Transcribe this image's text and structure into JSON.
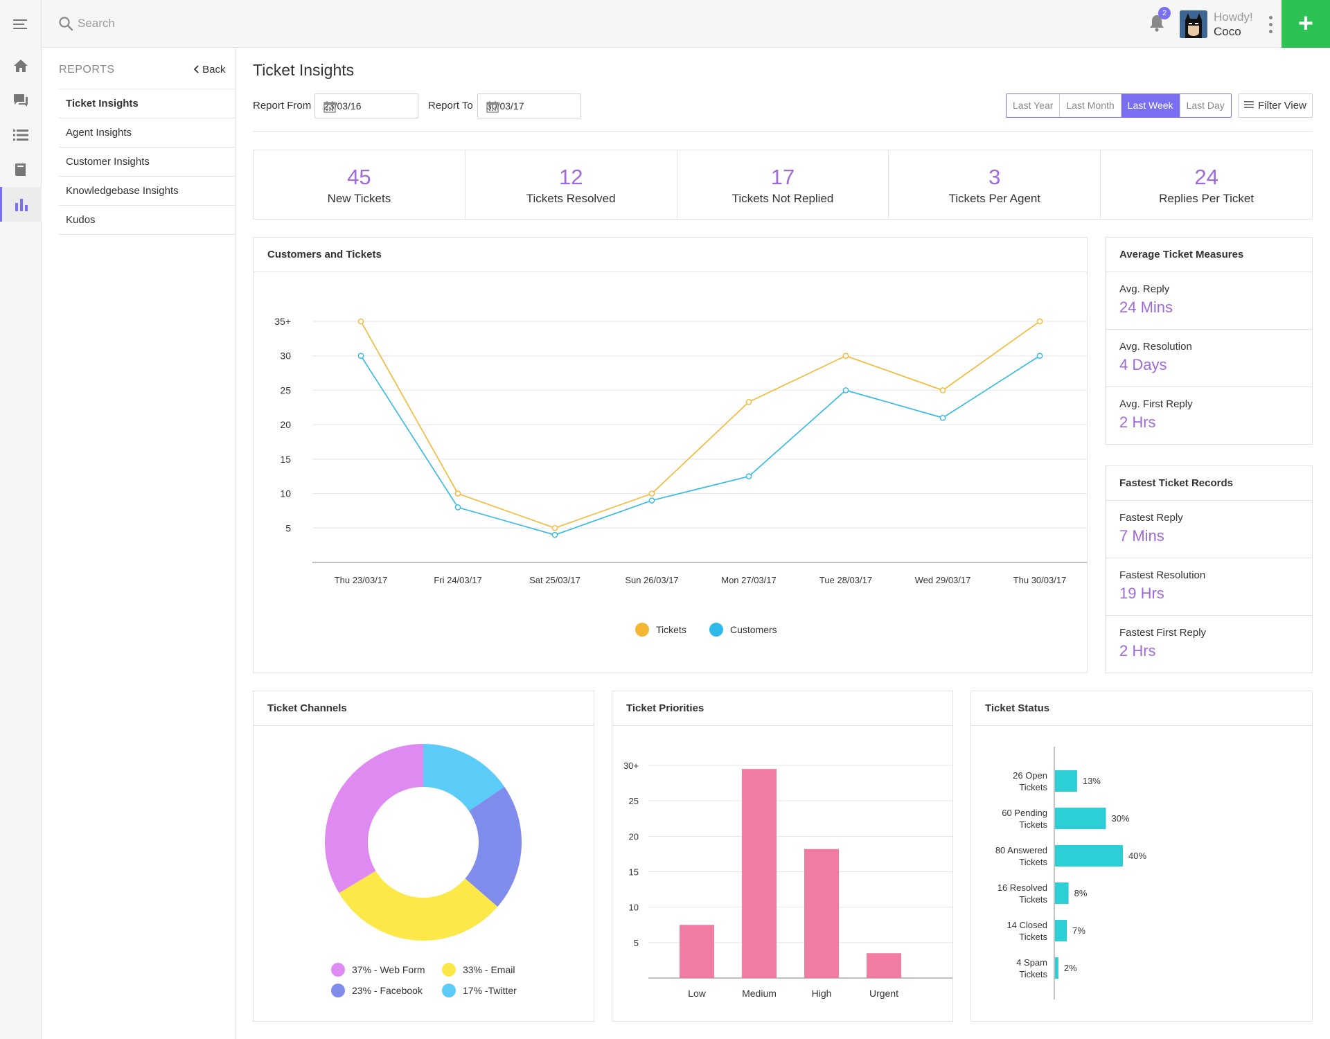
{
  "search": {
    "placeholder": "Search"
  },
  "header": {
    "notification_count": "2",
    "greeting": "Howdy!",
    "username": "Coco",
    "add_label": "+"
  },
  "reports_nav": {
    "title": "REPORTS",
    "back_label": "Back",
    "items": [
      {
        "label": "Ticket Insights",
        "active": true
      },
      {
        "label": "Agent Insights"
      },
      {
        "label": "Customer Insights"
      },
      {
        "label": "Knowledgebase Insights"
      },
      {
        "label": "Kudos"
      }
    ]
  },
  "page": {
    "title": "Ticket Insights",
    "report_from_label": "Report From",
    "report_from_value": "23/03/16",
    "report_to_label": "Report To",
    "report_to_value": "30/03/17",
    "ranges": [
      "Last Year",
      "Last Month",
      "Last Week",
      "Last Day"
    ],
    "active_range": "Last Week",
    "filter_label": "Filter View"
  },
  "stats": [
    {
      "value": "45",
      "label": "New Tickets"
    },
    {
      "value": "12",
      "label": "Tickets Resolved"
    },
    {
      "value": "17",
      "label": "Tickets Not Replied"
    },
    {
      "value": "3",
      "label": "Tickets Per Agent"
    },
    {
      "value": "24",
      "label": "Replies Per Ticket"
    }
  ],
  "average_measures": {
    "title": "Average Ticket Measures",
    "items": [
      {
        "label": "Avg. Reply",
        "value": "24 Mins"
      },
      {
        "label": "Avg. Resolution",
        "value": "4 Days"
      },
      {
        "label": "Avg. First Reply",
        "value": "2 Hrs"
      }
    ]
  },
  "fastest_records": {
    "title": "Fastest Ticket Records",
    "items": [
      {
        "label": "Fastest Reply",
        "value": "7 Mins"
      },
      {
        "label": "Fastest Resolution",
        "value": "19 Hrs"
      },
      {
        "label": "Fastest First Reply",
        "value": "2 Hrs"
      }
    ]
  },
  "colors": {
    "accent": "#7a6ff0",
    "stat_value": "#9e6bd9",
    "tickets_line": "#f5b731",
    "customers_line": "#2fb9e8",
    "priorities_bar": "#f07ca2",
    "status_bar": "#2dcfd6",
    "add_button": "#2bc253"
  },
  "chart_data": [
    {
      "title": "Customers and Tickets",
      "type": "line",
      "categories": [
        "Thu 23/03/17",
        "Fri 24/03/17",
        "Sat 25/03/17",
        "Sun 26/03/17",
        "Mon 27/03/17",
        "Tue 28/03/17",
        "Wed 29/03/17",
        "Thu 30/03/17"
      ],
      "y_ticks": [
        "35+",
        "30",
        "25",
        "20",
        "15",
        "10",
        "5"
      ],
      "ylim": [
        0,
        35
      ],
      "grid": true,
      "legend_position": "bottom",
      "series": [
        {
          "name": "Tickets",
          "color": "#f5b731",
          "values": [
            35,
            10,
            5,
            10,
            23.3,
            30,
            25,
            35
          ]
        },
        {
          "name": "Customers",
          "color": "#2fb9e8",
          "values": [
            30,
            8,
            4,
            9,
            12.5,
            25,
            21,
            30
          ]
        }
      ]
    },
    {
      "title": "Ticket Channels",
      "type": "pie",
      "legend_position": "bottom",
      "slices": [
        {
          "label": "37% - Web Form",
          "value": 37,
          "color": "#df8af0"
        },
        {
          "label": "33% - Email",
          "value": 33,
          "color": "#fde84a"
        },
        {
          "label": "23% - Facebook",
          "value": 23,
          "color": "#7f8cec"
        },
        {
          "label": "17% -Twitter",
          "value": 17,
          "color": "#5bccf7"
        }
      ]
    },
    {
      "title": "Ticket Priorities",
      "type": "bar",
      "categories": [
        "Low",
        "Medium",
        "High",
        "Urgent"
      ],
      "values": [
        7.5,
        29.5,
        18.2,
        3.5
      ],
      "y_ticks": [
        "30+",
        "25",
        "20",
        "15",
        "10",
        "5"
      ],
      "ylim": [
        0,
        30
      ],
      "grid": true
    },
    {
      "title": "Ticket Status",
      "type": "bar",
      "orientation": "horizontal",
      "categories": [
        [
          "26 Open",
          "Tickets"
        ],
        [
          "60 Pending",
          "Tickets"
        ],
        [
          "80 Answered",
          "Tickets"
        ],
        [
          "16 Resolved",
          "Tickets"
        ],
        [
          "14 Closed",
          "Tickets"
        ],
        [
          "4 Spam",
          "Tickets"
        ]
      ],
      "values": [
        13,
        30,
        40,
        8,
        7,
        2
      ],
      "value_labels": [
        "13%",
        "30%",
        "40%",
        "8%",
        "7%",
        "2%"
      ]
    }
  ]
}
